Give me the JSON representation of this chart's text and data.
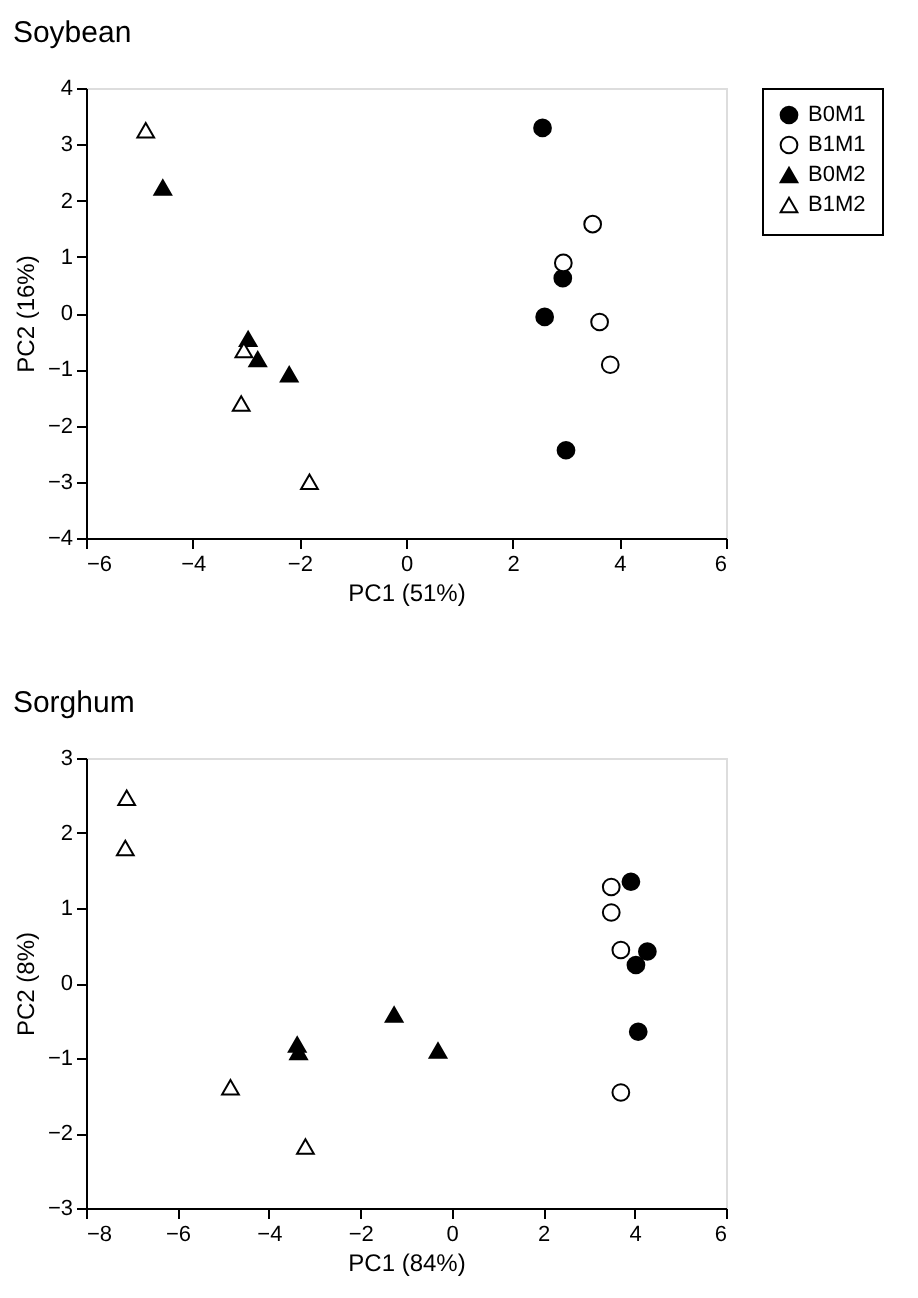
{
  "chart_data": [
    {
      "type": "scatter",
      "title": "Soybean",
      "xlabel": "PC1 (51%)",
      "ylabel": "PC2 (16%)",
      "xlim": [
        -6,
        6
      ],
      "xticks": [
        -6,
        -4,
        -2,
        0,
        2,
        4,
        6
      ],
      "ylim": [
        -4,
        4
      ],
      "yticks": [
        -4,
        -3,
        -2,
        -1,
        0,
        1,
        2,
        3,
        4
      ],
      "grid": false,
      "legend": "top right",
      "series": [
        {
          "name": "B0M1",
          "color": "#000000",
          "marker": "circle",
          "x": [
            2.56,
            2.94,
            2.6,
            3.0
          ],
          "values": [
            3.29,
            0.62,
            -0.07,
            -2.44
          ]
        },
        {
          "name": "B1M1",
          "color": "#ffffff",
          "marker": "circle",
          "x": [
            3.5,
            2.95,
            3.63,
            3.83
          ],
          "values": [
            1.58,
            0.89,
            -0.16,
            -0.92
          ]
        },
        {
          "name": "B0M2",
          "color": "#000000",
          "marker": "triangle",
          "x": [
            -4.56,
            -2.96,
            -2.78,
            -2.19
          ],
          "values": [
            2.23,
            -0.46,
            -0.82,
            -1.09
          ]
        },
        {
          "name": "B1M2",
          "color": "#ffffff",
          "marker": "triangle",
          "x": [
            -4.88,
            -3.04,
            -3.09,
            -1.81
          ],
          "values": [
            3.25,
            -0.66,
            -1.61,
            -3.0
          ]
        }
      ]
    },
    {
      "type": "scatter",
      "title": "Sorghum",
      "xlabel": "PC1 (84%)",
      "ylabel": "PC2 (8%)",
      "xlim": [
        -8,
        6
      ],
      "xticks": [
        -8,
        -6,
        -4,
        -2,
        0,
        2,
        4,
        6
      ],
      "ylim": [
        -3,
        3
      ],
      "yticks": [
        -3,
        -2,
        -1,
        0,
        1,
        2,
        3
      ],
      "grid": false,
      "legend": false,
      "series": [
        {
          "color": "#000000",
          "marker": "circle",
          "x": [
            3.92,
            4.28,
            4.03,
            4.08
          ],
          "values": [
            1.35,
            0.42,
            0.24,
            -0.65
          ]
        },
        {
          "color": "#ffffff",
          "marker": "circle",
          "x": [
            3.49,
            3.49,
            3.7,
            3.7
          ],
          "values": [
            1.28,
            0.94,
            0.44,
            -1.46
          ]
        },
        {
          "color": "#000000",
          "marker": "triangle",
          "x": [
            -3.38,
            -3.35,
            -1.26,
            -0.3
          ],
          "values": [
            -0.82,
            -0.92,
            -0.42,
            -0.9
          ]
        },
        {
          "color": "#ffffff",
          "marker": "triangle",
          "x": [
            -7.11,
            -7.14,
            -4.84,
            -3.2
          ],
          "values": [
            2.47,
            1.8,
            -1.39,
            -2.18
          ]
        }
      ]
    }
  ]
}
